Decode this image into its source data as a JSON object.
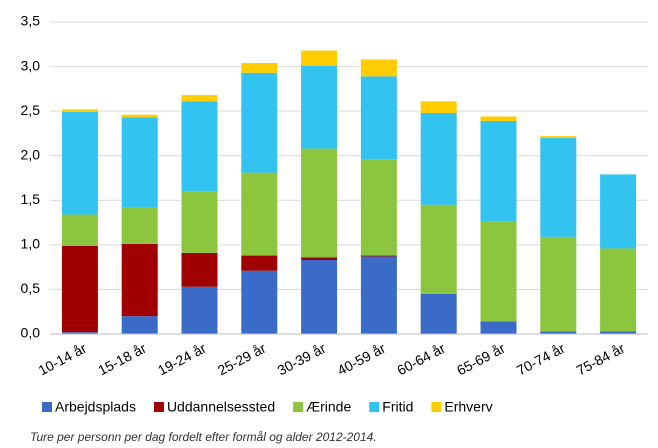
{
  "chart_data": {
    "type": "stacked_bar",
    "categories": [
      "10-14 år",
      "15-18 år",
      "19-24 år",
      "25-29 år",
      "30-39 år",
      "40-59 år",
      "60-64 år",
      "65-69 år",
      "70-74 år",
      "75-84 år"
    ],
    "series": [
      {
        "name": "Arbejdsplads",
        "color": "#3a6bc9",
        "values": [
          0.02,
          0.2,
          0.53,
          0.71,
          0.83,
          0.87,
          0.45,
          0.14,
          0.03,
          0.03
        ]
      },
      {
        "name": "Uddannelsessted",
        "color": "#a00000",
        "values": [
          0.97,
          0.81,
          0.38,
          0.17,
          0.03,
          0.01,
          0,
          0,
          0,
          0
        ]
      },
      {
        "name": "Ærinde",
        "color": "#8cc63f",
        "values": [
          0.35,
          0.41,
          0.69,
          0.93,
          1.22,
          1.08,
          1.0,
          1.12,
          1.06,
          0.93
        ]
      },
      {
        "name": "Fritid",
        "color": "#33c3f0",
        "values": [
          1.15,
          1.01,
          1.01,
          1.12,
          0.93,
          0.93,
          1.03,
          1.13,
          1.11,
          0.83
        ]
      },
      {
        "name": "Erhverv",
        "color": "#ffcc00",
        "values": [
          0.03,
          0.03,
          0.07,
          0.11,
          0.17,
          0.19,
          0.13,
          0.05,
          0.02,
          0
        ]
      }
    ],
    "ylim": [
      0,
      3.5
    ],
    "yticks": [
      {
        "value": 0,
        "label": "0,0"
      },
      {
        "value": 0.5,
        "label": "0,5"
      },
      {
        "value": 1,
        "label": "1,0"
      },
      {
        "value": 1.5,
        "label": "1,5"
      },
      {
        "value": 2,
        "label": "2,0"
      },
      {
        "value": 2.5,
        "label": "2,5"
      },
      {
        "value": 3,
        "label": "3,0"
      },
      {
        "value": 3.5,
        "label": "3,5"
      }
    ],
    "grid": true,
    "legend": "bottom",
    "caption": "Ture per personn per dag fordelt efter formål og alder 2012-2014."
  }
}
